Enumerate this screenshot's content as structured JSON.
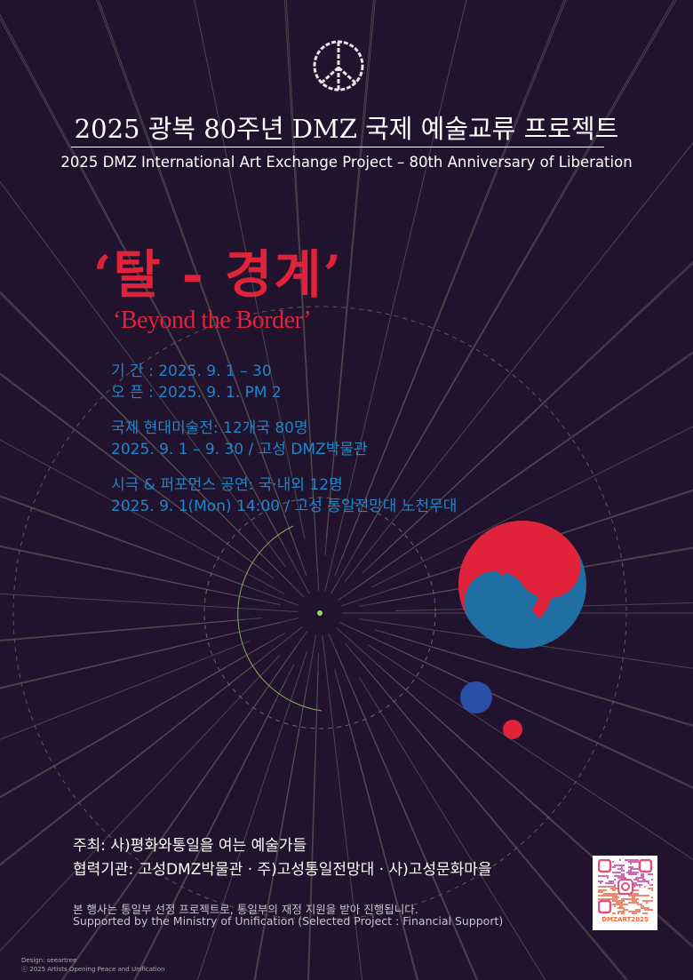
{
  "header": {
    "title": "2025 광복 80주년 DMZ 국제 예술교류 프로젝트",
    "subtitle": "2025 DMZ International Art Exchange Project – 80th Anniversary of Liberation"
  },
  "hero": {
    "title_ko": "‘탈 - 경계’",
    "title_en": "‘Beyond the Border’"
  },
  "info": {
    "period": "기 간 : 2025. 9. 1 – 30",
    "opening": "오 픈 : 2025. 9. 1.  PM 2",
    "exhibition_title": "국제 현대미술전: 12개국 80명",
    "exhibition_detail": "2025. 9. 1 – 9. 30 / 고성 DMZ박물관",
    "performance_title": "시극 & 퍼포먼스 공연: 국·내외 12명",
    "performance_detail": "2025. 9. 1(Mon) 14:00 / 고성 통일전망대 노천무대"
  },
  "organizers": {
    "host": "주최: 사)평화와통일을 여는 예술가들",
    "partners": "협력기관: 고성DMZ박물관 · 주)고성통일전망대 · 사)고성문화마을"
  },
  "support": {
    "ko": "본 행사는 통일부 선정 프로젝트로, 통일부의 재정 지원을 받아 진행됩니다.",
    "en": "Supported by the Ministry of Unification (Selected Project : Financial Support)"
  },
  "credits": {
    "design": "Design: seeartree",
    "copyright": "ⓒ 2025 Artists Opening Peace and Unification"
  },
  "qr": {
    "label": "DMZART2025",
    "icon": "instagram-icon"
  },
  "colors": {
    "background": "#21132d",
    "accent_red": "#e0233a",
    "accent_blue": "#1b88cc",
    "taegeuk_blue": "#1f6fa5"
  }
}
